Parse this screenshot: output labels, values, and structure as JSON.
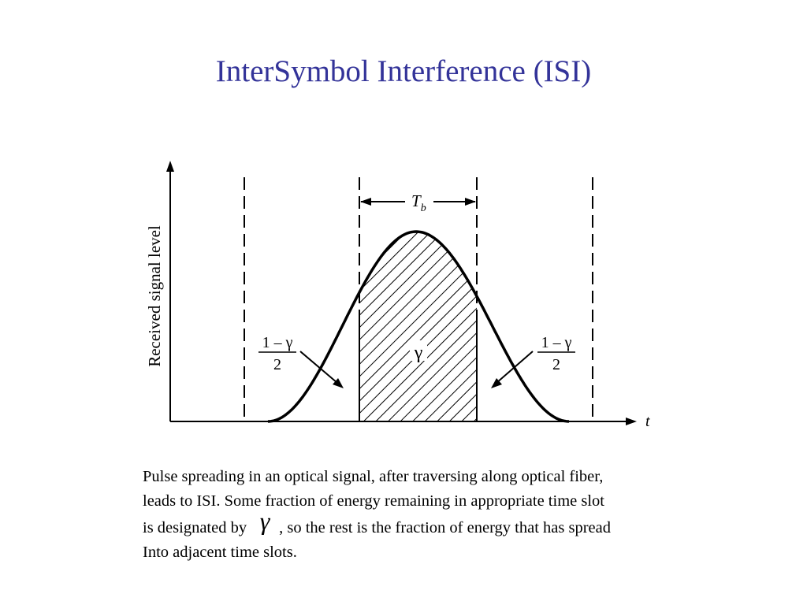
{
  "slide": {
    "title": "InterSymbol Interference (ISI)"
  },
  "diagram": {
    "y_axis_label": "Received signal level",
    "x_axis_label": "t",
    "bit_period_symbol": "T",
    "bit_period_subscript": "b",
    "center_label": "γ",
    "left_fraction": {
      "numerator": "1 – γ",
      "denominator": "2"
    },
    "right_fraction": {
      "numerator": "1 – γ",
      "denominator": "2"
    }
  },
  "caption": {
    "line1": "Pulse spreading in an optical signal, after traversing along optical fiber,",
    "line2": "leads to ISI. Some fraction of energy remaining in appropriate time slot",
    "line3_before": "is designated by",
    "line3_symbol": "γ",
    "line3_after": ", so the rest is the fraction of energy that has spread",
    "line4": "Into adjacent time slots."
  }
}
